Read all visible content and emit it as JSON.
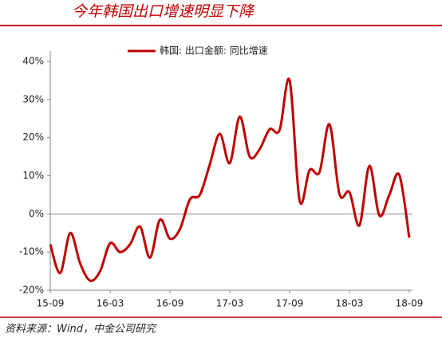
{
  "chart_data": {
    "type": "line",
    "title": "今年韩国出口增速明显下降",
    "source": "资料来源：Wind，中金公司研究",
    "categories": [
      "15-09",
      null,
      null,
      null,
      null,
      null,
      "16-03",
      null,
      null,
      null,
      null,
      null,
      "16-09",
      null,
      null,
      null,
      null,
      null,
      "17-03",
      null,
      null,
      null,
      null,
      null,
      "17-09",
      null,
      null,
      null,
      null,
      null,
      "18-03",
      null,
      null,
      null,
      null,
      null,
      "18-09"
    ],
    "series": [
      {
        "name": "韩国: 出口金额: 同比增速",
        "color": "#c00000",
        "values": [
          -8,
          -15.5,
          -5,
          -13,
          -17.5,
          -15,
          -7.7,
          -10,
          -8,
          -3.3,
          -11.5,
          -1.5,
          -6.5,
          -4,
          3.8,
          5,
          13,
          21,
          13.3,
          25.5,
          15,
          17,
          22.2,
          22,
          35,
          3.5,
          11.5,
          11,
          23.5,
          5.2,
          5.7,
          -3,
          12.6,
          -0.4,
          5,
          10.2,
          -6.2
        ]
      }
    ],
    "ylim": [
      -20,
      40
    ],
    "yticks": [
      {
        "value": -20,
        "label": "-20%"
      },
      {
        "value": -10,
        "label": "-10%"
      },
      {
        "value": 0,
        "label": "0%"
      },
      {
        "value": 10,
        "label": "10%"
      },
      {
        "value": 20,
        "label": "20%"
      },
      {
        "value": 30,
        "label": "30%"
      },
      {
        "value": 40,
        "label": "40%"
      }
    ],
    "legend": "top"
  }
}
